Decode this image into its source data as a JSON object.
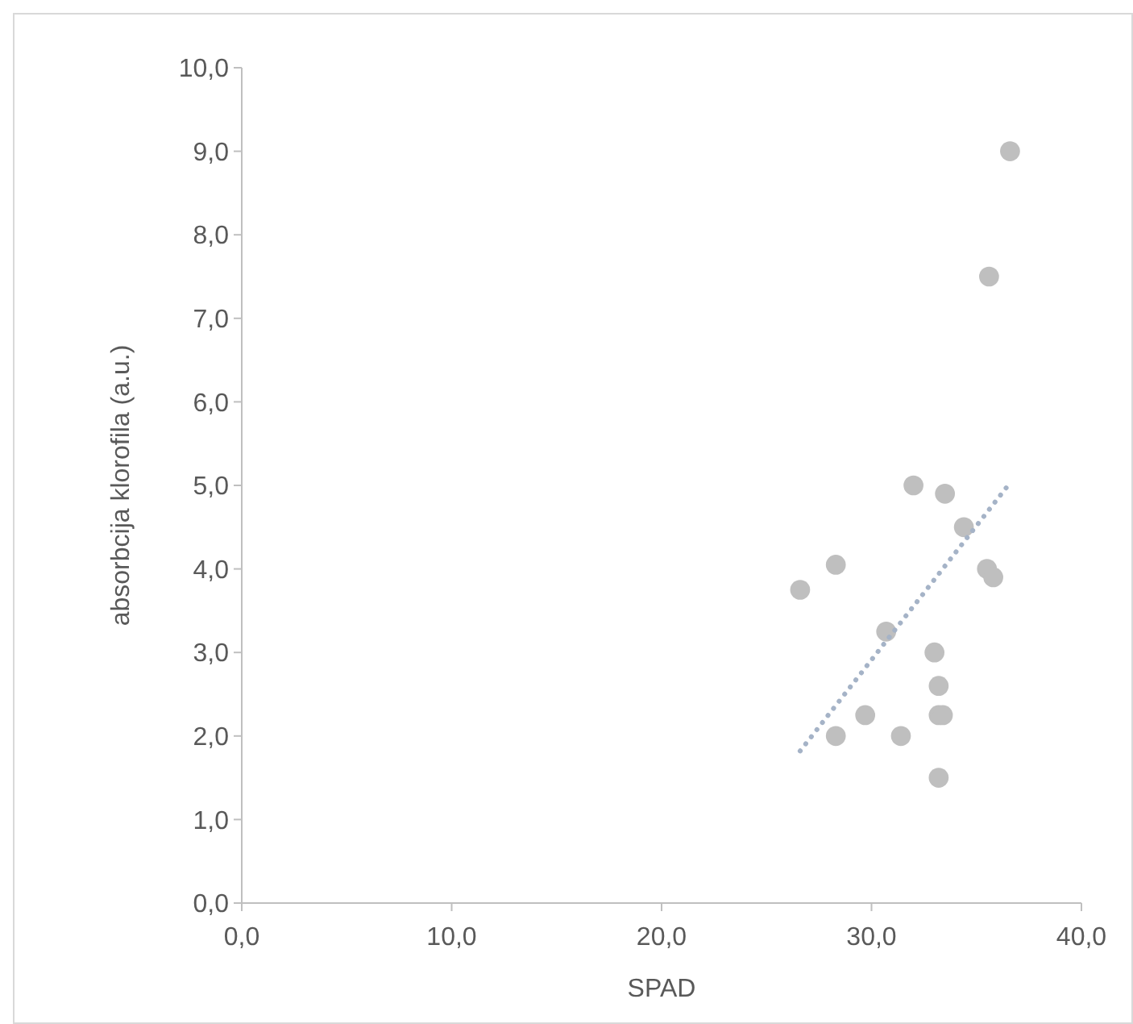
{
  "chart_data": {
    "type": "scatter",
    "xlabel": "SPAD",
    "ylabel": "absorbcija klorofila (a.u.)",
    "xlim": [
      0,
      40
    ],
    "ylim": [
      0,
      10
    ],
    "xticks": [
      {
        "value": 0,
        "label": "0,0"
      },
      {
        "value": 10,
        "label": "10,0"
      },
      {
        "value": 20,
        "label": "20,0"
      },
      {
        "value": 30,
        "label": "30,0"
      },
      {
        "value": 40,
        "label": "40,0"
      }
    ],
    "yticks": [
      {
        "value": 0,
        "label": "0,0"
      },
      {
        "value": 1,
        "label": "1,0"
      },
      {
        "value": 2,
        "label": "2,0"
      },
      {
        "value": 3,
        "label": "3,0"
      },
      {
        "value": 4,
        "label": "4,0"
      },
      {
        "value": 5,
        "label": "5,0"
      },
      {
        "value": 6,
        "label": "6,0"
      },
      {
        "value": 7,
        "label": "7,0"
      },
      {
        "value": 8,
        "label": "8,0"
      },
      {
        "value": 9,
        "label": "9,0"
      },
      {
        "value": 10,
        "label": "10,0"
      }
    ],
    "grid": false,
    "marker": "circle",
    "series": [
      {
        "color": "#bfbfbf",
        "x": [
          26.6,
          28.3,
          28.3,
          29.7,
          30.7,
          31.4,
          32.0,
          33.0,
          33.2,
          33.2,
          33.4,
          33.2,
          33.5,
          34.4,
          35.5,
          35.8,
          35.6,
          36.6
        ],
        "values": [
          3.75,
          4.05,
          2.0,
          2.25,
          3.25,
          2.0,
          5.0,
          3.0,
          2.6,
          2.25,
          2.25,
          1.5,
          4.9,
          4.5,
          4.0,
          3.9,
          7.5,
          9.0
        ]
      },
      {
        "type": "line",
        "color": "#a5b3c7",
        "line_style": "dotted",
        "marker": "none",
        "x": [
          26.6,
          36.6
        ],
        "values": [
          1.82,
          5.03
        ]
      }
    ]
  }
}
